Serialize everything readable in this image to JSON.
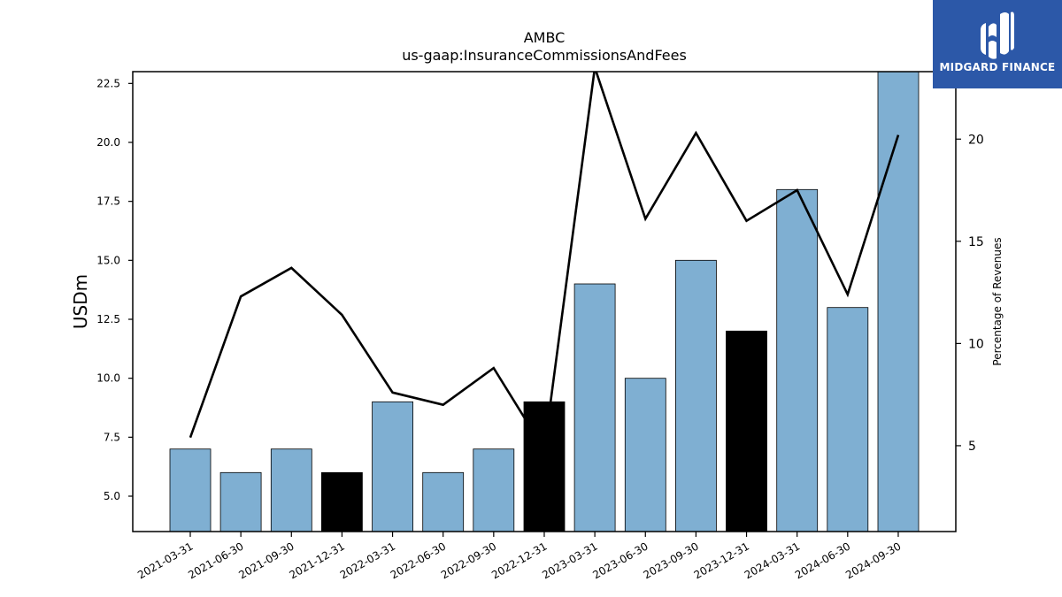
{
  "chart_data": {
    "type": "bar",
    "title": "AMBC",
    "subtitle": "us-gaap:InsuranceCommissionsAndFees",
    "ylabel": "USDm",
    "y2label": "Percentage of Revenues",
    "ylim": [
      3.5,
      23.0
    ],
    "y2lim": [
      0.8,
      23.3
    ],
    "yticks": [
      5.0,
      7.5,
      10.0,
      12.5,
      15.0,
      17.5,
      20.0,
      22.5
    ],
    "y2ticks": [
      5,
      10,
      15,
      20
    ],
    "categories": [
      "2021-03-31",
      "2021-06-30",
      "2021-09-30",
      "2021-12-31",
      "2022-03-31",
      "2022-06-30",
      "2022-09-30",
      "2022-12-31",
      "2023-03-31",
      "2023-06-30",
      "2023-09-30",
      "2023-12-31",
      "2024-03-31",
      "2024-06-30",
      "2024-09-30"
    ],
    "series": [
      {
        "type": "bar",
        "axis": "left",
        "values": [
          7,
          6,
          7,
          6,
          9,
          6,
          7,
          9,
          14,
          10,
          15,
          12,
          18,
          13,
          23
        ],
        "colors": [
          "#7fafd2",
          "#7fafd2",
          "#7fafd2",
          "#000000",
          "#7fafd2",
          "#7fafd2",
          "#7fafd2",
          "#000000",
          "#7fafd2",
          "#7fafd2",
          "#7fafd2",
          "#000000",
          "#7fafd2",
          "#7fafd2",
          "#7fafd2"
        ]
      },
      {
        "type": "line",
        "axis": "right",
        "color": "#000000",
        "values": [
          5.4,
          12.3,
          13.7,
          11.4,
          7.6,
          7.0,
          8.8,
          4.8,
          23.5,
          16.1,
          20.3,
          16.0,
          17.5,
          12.4,
          20.2
        ]
      }
    ],
    "grid": false,
    "legend": "none"
  },
  "logo": {
    "text": "MIDGARD FINANCE",
    "icon": "midgard-logo-icon",
    "color": "#2c58a8"
  }
}
